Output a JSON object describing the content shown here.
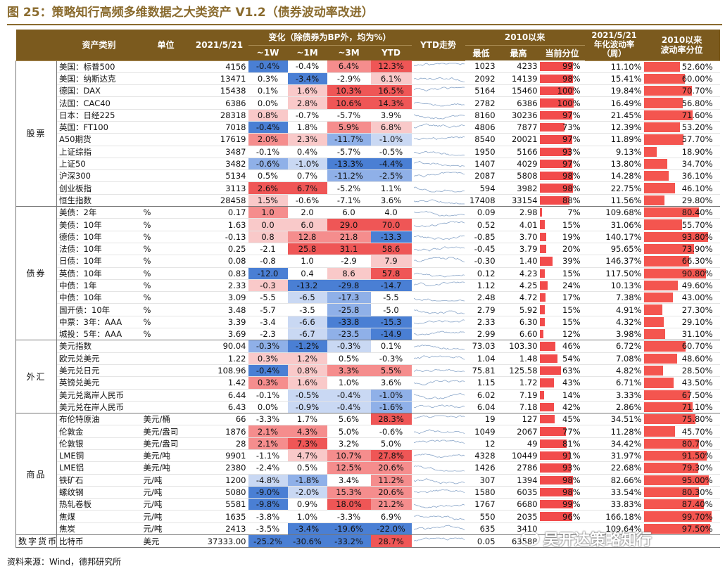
{
  "title": "图 25：策略知行高频多维数据之大类资产 V1.2（债券波动率改进）",
  "header": {
    "asset": "资产类别",
    "unit": "单位",
    "date": "2021/5/21",
    "change_group": "变化（除债券为BP外，均为%）",
    "w1": "~1W",
    "m1": "~1M",
    "m3": "~3M",
    "ytd": "YTD",
    "ytd_trend": "YTD走势",
    "since2010": "2010以来",
    "low": "最低",
    "high": "最高",
    "pctile": "当前分位",
    "vol": "2021/5/21\n年化波动率\n（周）",
    "vol_pctile": "2010以来\n波动率分位"
  },
  "colors": {
    "red": "#f24b4b",
    "blue": "#4a7fd4",
    "header": "#7b5a1e"
  },
  "groups": [
    {
      "name": "股票",
      "rows": [
        {
          "n": "美国：标普500",
          "u": "",
          "v": "4156",
          "w": "-0.4%",
          "m": "-0.4%",
          "t": "6.4%",
          "y": "12.3%",
          "lo": "1023",
          "hi": "4233",
          "p": "99%",
          "pv": 99,
          "vol": "11.10%",
          "vp": "52.60%",
          "vpv": 52.6,
          "wc": "b3",
          "mc": "",
          "tc": "r2",
          "yc": "r3"
        },
        {
          "n": "美国：纳斯达克",
          "u": "",
          "v": "13471",
          "w": "0.3%",
          "m": "-3.4%",
          "t": "-2.9%",
          "y": "6.1%",
          "lo": "2092",
          "hi": "14139",
          "p": "98%",
          "pv": 98,
          "vol": "15.41%",
          "vp": "60.00%",
          "vpv": 60,
          "wc": "",
          "mc": "b3",
          "tc": "",
          "yc": "r1"
        },
        {
          "n": "德国：DAX",
          "u": "",
          "v": "15438",
          "w": "0.1%",
          "m": "1.6%",
          "t": "10.3%",
          "y": "16.5%",
          "lo": "5164",
          "hi": "15460",
          "p": "100%",
          "pv": 100,
          "vol": "19.84%",
          "vp": "70.70%",
          "vpv": 70.7,
          "wc": "",
          "mc": "r1",
          "tc": "r3",
          "yc": "r3"
        },
        {
          "n": "法国：CAC40",
          "u": "",
          "v": "6386",
          "w": "0.0%",
          "m": "2.8%",
          "t": "10.6%",
          "y": "14.3%",
          "lo": "2782",
          "hi": "6386",
          "p": "100%",
          "pv": 100,
          "vol": "16.49%",
          "vp": "56.80%",
          "vpv": 56.8,
          "wc": "",
          "mc": "r1",
          "tc": "r3",
          "yc": "r3"
        },
        {
          "n": "日本：日经225",
          "u": "",
          "v": "28318",
          "w": "0.8%",
          "m": "-0.7%",
          "t": "-5.7%",
          "y": "3.9%",
          "lo": "8160",
          "hi": "30236",
          "p": "97%",
          "pv": 97,
          "vol": "21.45%",
          "vp": "71.60%",
          "vpv": 71.6,
          "wc": "r1",
          "mc": "",
          "tc": "",
          "yc": ""
        },
        {
          "n": "英国：FT100",
          "u": "",
          "v": "7018",
          "w": "-0.4%",
          "m": "1.8%",
          "t": "5.9%",
          "y": "6.8%",
          "lo": "4806",
          "hi": "7877",
          "p": "73%",
          "pv": 73,
          "vol": "12.39%",
          "vp": "53.20%",
          "vpv": 53.2,
          "wc": "b3",
          "mc": "",
          "tc": "r2",
          "yc": "r1"
        },
        {
          "n": "A50期货",
          "u": "",
          "v": "17619",
          "w": "2.0%",
          "m": "2.3%",
          "t": "-11.7%",
          "y": "-1.0%",
          "lo": "8540",
          "hi": "20021",
          "p": "97%",
          "pv": 97,
          "vol": "11.89%",
          "vp": "57.70%",
          "vpv": 57.7,
          "wc": "r2",
          "mc": "r1",
          "tc": "b2",
          "yc": "b1"
        },
        {
          "n": "上证综指",
          "u": "",
          "v": "3487",
          "w": "-0.1%",
          "m": "0.4%",
          "t": "-5.7%",
          "y": "-0.5%",
          "lo": "1950",
          "hi": "5166",
          "p": "93%",
          "pv": 93,
          "vol": "9.13%",
          "vp": "18.90%",
          "vpv": 18.9,
          "wc": "",
          "mc": "",
          "tc": "",
          "yc": ""
        },
        {
          "n": "上证50",
          "u": "",
          "v": "3482",
          "w": "-0.6%",
          "m": "-1.0%",
          "t": "-13.3%",
          "y": "-4.4%",
          "lo": "1407",
          "hi": "4029",
          "p": "97%",
          "pv": 97,
          "vol": "13.80%",
          "vp": "34.70%",
          "vpv": 34.7,
          "wc": "b2",
          "mc": "b1",
          "tc": "b3",
          "yc": "b3"
        },
        {
          "n": "沪深300",
          "u": "",
          "v": "5134",
          "w": "0.5%",
          "m": "0.7%",
          "t": "-11.2%",
          "y": "-2.5%",
          "lo": "2087",
          "hi": "5808",
          "p": "98%",
          "pv": 98,
          "vol": "14.28%",
          "vp": "36.10%",
          "vpv": 36.1,
          "wc": "",
          "mc": "",
          "tc": "b2",
          "yc": "b2"
        },
        {
          "n": "创业板指",
          "u": "",
          "v": "3113",
          "w": "2.6%",
          "m": "6.7%",
          "t": "-5.2%",
          "y": "1.1%",
          "lo": "594",
          "hi": "3982",
          "p": "98%",
          "pv": 98,
          "vol": "22.75%",
          "vp": "46.10%",
          "vpv": 46.1,
          "wc": "r3",
          "mc": "r3",
          "tc": "",
          "yc": ""
        },
        {
          "n": "恒生指数",
          "u": "",
          "v": "28458",
          "w": "1.5%",
          "m": "-0.6%",
          "t": "-7.1%",
          "y": "3.6%",
          "lo": "17408",
          "hi": "33154",
          "p": "88%",
          "pv": 88,
          "vol": "11.56%",
          "vp": "29.80%",
          "vpv": 29.8,
          "wc": "r1",
          "mc": "",
          "tc": "",
          "yc": ""
        }
      ]
    },
    {
      "name": "债券",
      "rows": [
        {
          "n": "美债：2年",
          "u": "%",
          "v": "0.17",
          "w": "1.0",
          "m": "2.0",
          "t": "6.0",
          "y": "4.0",
          "lo": "0.09",
          "hi": "2.98",
          "p": "7%",
          "pv": 7,
          "vol": "109.68%",
          "vp": "80.40%",
          "vpv": 80.4,
          "wc": "r2",
          "mc": "",
          "tc": "",
          "yc": ""
        },
        {
          "n": "美债：10年",
          "u": "%",
          "v": "1.63",
          "w": "0.0",
          "m": "6.0",
          "t": "29.0",
          "y": "70.0",
          "lo": "0.52",
          "hi": "4.01",
          "p": "15%",
          "pv": 15,
          "vol": "31.06%",
          "vp": "55.70%",
          "vpv": 55.7,
          "wc": "r1",
          "mc": "r1",
          "tc": "r3",
          "yc": "r3"
        },
        {
          "n": "德债：10年",
          "u": "%",
          "v": "-0.13",
          "w": "0.8",
          "m": "12.8",
          "t": "21.8",
          "y": "-13.3",
          "lo": "-0.85",
          "hi": "3.70",
          "p": "19%",
          "pv": 19,
          "vol": "140.17%",
          "vp": "93.80%",
          "vpv": 93.8,
          "wc": "r1",
          "mc": "r2",
          "tc": "r2",
          "yc": "b3"
        },
        {
          "n": "法债：10年",
          "u": "%",
          "v": "0.25",
          "w": "-2.1",
          "m": "25.8",
          "t": "31.1",
          "y": "58.6",
          "lo": "-0.45",
          "hi": "3.79",
          "p": "20%",
          "pv": 20,
          "vol": "95.65%",
          "vp": "73.90%",
          "vpv": 73.9,
          "wc": "",
          "mc": "r3",
          "tc": "r3",
          "yc": "r3"
        },
        {
          "n": "日债：10年",
          "u": "%",
          "v": "0.08",
          "w": "-0.8",
          "m": "1.0",
          "t": "-2.9",
          "y": "7.9",
          "lo": "-0.30",
          "hi": "1.40",
          "p": "39%",
          "pv": 39,
          "vol": "146.37%",
          "vp": "66.30%",
          "vpv": 66.3,
          "wc": "",
          "mc": "",
          "tc": "",
          "yc": "r1"
        },
        {
          "n": "英债：10年",
          "u": "%",
          "v": "0.83",
          "w": "-12.0",
          "m": "0.4",
          "t": "8.6",
          "y": "57.8",
          "lo": "0.12",
          "hi": "4.23",
          "p": "15%",
          "pv": 15,
          "vol": "117.50%",
          "vp": "90.80%",
          "vpv": 90.8,
          "wc": "b3",
          "mc": "",
          "tc": "r1",
          "yc": "r3"
        },
        {
          "n": "中债：1年",
          "u": "%",
          "v": "2.33",
          "w": "-0.3",
          "m": "-13.2",
          "t": "-29.8",
          "y": "-14.7",
          "lo": "1.12",
          "hi": "4.25",
          "p": "24%",
          "pv": 24,
          "vol": "10.13%",
          "vp": "49.60%",
          "vpv": 49.6,
          "wc": "r1",
          "mc": "b3",
          "tc": "b3",
          "yc": "b3"
        },
        {
          "n": "中债：10年",
          "u": "%",
          "v": "3.09",
          "w": "-5.5",
          "m": "-6.5",
          "t": "-17.3",
          "y": "-5.5",
          "lo": "2.48",
          "hi": "4.72",
          "p": "17%",
          "pv": 17,
          "vol": "7.38%",
          "vp": "43.00%",
          "vpv": 43,
          "wc": "",
          "mc": "b1",
          "tc": "b2",
          "yc": ""
        },
        {
          "n": "国开债：10年",
          "u": "%",
          "v": "3.48",
          "w": "-5.7",
          "m": "-3.5",
          "t": "-25.8",
          "y": "-5.0",
          "lo": "2.79",
          "hi": "5.92",
          "p": "15%",
          "pv": 15,
          "vol": "4.91%",
          "vp": "27.30%",
          "vpv": 27.3,
          "wc": "",
          "mc": "",
          "tc": "b2",
          "yc": ""
        },
        {
          "n": "中票：3年：AAA",
          "u": "%",
          "v": "3.39",
          "w": "-3.4",
          "m": "-6.6",
          "t": "-33.8",
          "y": "-15.3",
          "lo": "2.33",
          "hi": "6.30",
          "p": "15%",
          "pv": 15,
          "vol": "4.32%",
          "vp": "29.10%",
          "vpv": 29.1,
          "wc": "",
          "mc": "b1",
          "tc": "b3",
          "yc": "b3"
        },
        {
          "n": "城投：5年：AAA",
          "u": "%",
          "v": "3.69",
          "w": "-2.3",
          "m": "-6.7",
          "t": "-23.5",
          "y": "-14.9",
          "lo": "2.99",
          "hi": "6.60",
          "p": "12%",
          "pv": 12,
          "vol": "3.98%",
          "vp": "31.10%",
          "vpv": 31.1,
          "wc": "",
          "mc": "b1",
          "tc": "b2",
          "yc": "b3"
        }
      ]
    },
    {
      "name": "外汇",
      "rows": [
        {
          "n": "美元指数",
          "u": "",
          "v": "90.04",
          "w": "-0.3%",
          "m": "-1.2%",
          "t": "-0.3%",
          "y": "0.1%",
          "lo": "73.03",
          "hi": "103.30",
          "p": "46%",
          "pv": 46,
          "vol": "6.72%",
          "vp": "60.70%",
          "vpv": 60.7,
          "wc": "b2",
          "mc": "b3",
          "tc": "b1",
          "yc": ""
        },
        {
          "n": "欧元兑美元",
          "u": "",
          "v": "1.22",
          "w": "0.3%",
          "m": "1.2%",
          "t": "0.5%",
          "y": "-0.3%",
          "lo": "1.04",
          "hi": "1.48",
          "p": "54%",
          "pv": 54,
          "vol": "7.08%",
          "vp": "48.60%",
          "vpv": 48.6,
          "wc": "r1",
          "mc": "r1",
          "tc": "",
          "yc": ""
        },
        {
          "n": "美元兑日元",
          "u": "",
          "v": "108.96",
          "w": "-0.4%",
          "m": "0.8%",
          "t": "3.3%",
          "y": "5.5%",
          "lo": "75.81",
          "hi": "125.58",
          "p": "63%",
          "pv": 63,
          "vol": "4.82%",
          "vp": "28.50%",
          "vpv": 28.5,
          "wc": "b3",
          "mc": "r1",
          "tc": "r2",
          "yc": "r2"
        },
        {
          "n": "英镑兑美元",
          "u": "",
          "v": "1.42",
          "w": "0.3%",
          "m": "1.6%",
          "t": "1.0%",
          "y": "3.6%",
          "lo": "1.15",
          "hi": "1.72",
          "p": "43%",
          "pv": 43,
          "vol": "6.71%",
          "vp": "43.50%",
          "vpv": 43.5,
          "wc": "r2",
          "mc": "r1",
          "tc": "",
          "yc": ""
        },
        {
          "n": "美元兑离岸人民币",
          "u": "",
          "v": "6.44",
          "w": "-0.1%",
          "m": "-0.5%",
          "t": "-0.4%",
          "y": "-1.0%",
          "lo": "6.02",
          "hi": "7.19",
          "p": "14%",
          "pv": 14,
          "vol": "3.33%",
          "vp": "67.50%",
          "vpv": 67.5,
          "wc": "",
          "mc": "b1",
          "tc": "b1",
          "yc": "b2"
        },
        {
          "n": "美元兑在岸人民币",
          "u": "",
          "v": "6.43",
          "w": "0.0%",
          "m": "-0.9%",
          "t": "-0.4%",
          "y": "-1.6%",
          "lo": "6.04",
          "hi": "7.18",
          "p": "42%",
          "pv": 42,
          "vol": "2.86%",
          "vp": "71.10%",
          "vpv": 71.1,
          "wc": "",
          "mc": "b1",
          "tc": "b1",
          "yc": "b2"
        }
      ]
    },
    {
      "name": "商品",
      "rows": [
        {
          "n": "布伦特原油",
          "u": "美元/桶",
          "v": "66",
          "w": "-3.3%",
          "m": "1.7%",
          "t": "5.6%",
          "y": "28.3%",
          "lo": "19",
          "hi": "127",
          "p": "45%",
          "pv": 45,
          "vol": "34.51%",
          "vp": "75.80%",
          "vpv": 75.8,
          "wc": "",
          "mc": "",
          "tc": "",
          "yc": "r3"
        },
        {
          "n": "伦敦金",
          "u": "美元/盎司",
          "v": "1876",
          "w": "2.1%",
          "m": "4.3%",
          "t": "5.0%",
          "y": "-0.6%",
          "lo": "1049",
          "hi": "2067",
          "p": "77%",
          "pv": 77,
          "vol": "11.28%",
          "vp": "45.70%",
          "vpv": 45.7,
          "wc": "r2",
          "mc": "r2",
          "tc": "",
          "yc": ""
        },
        {
          "n": "伦敦银",
          "u": "美元/盎司",
          "v": "28",
          "w": "2.1%",
          "m": "7.3%",
          "t": "3.2%",
          "y": "5.0%",
          "lo": "12",
          "hi": "49",
          "p": "81%",
          "pv": 81,
          "vol": "34.42%",
          "vp": "80.70%",
          "vpv": 80.7,
          "wc": "r2",
          "mc": "r3",
          "tc": "",
          "yc": ""
        },
        {
          "n": "LME铜",
          "u": "美元/吨",
          "v": "9901",
          "w": "-1.1%",
          "m": "4.7%",
          "t": "10.7%",
          "y": "27.8%",
          "lo": "4328",
          "hi": "10449",
          "p": "91%",
          "pv": 91,
          "vol": "31.97%",
          "vp": "91.50%",
          "vpv": 91.5,
          "wc": "",
          "mc": "r1",
          "tc": "r2",
          "yc": "r3"
        },
        {
          "n": "LME铝",
          "u": "美元/吨",
          "v": "2380",
          "w": "-2.4%",
          "m": "0.5%",
          "t": "12.5%",
          "y": "20.6%",
          "lo": "1426",
          "hi": "2786",
          "p": "93%",
          "pv": 93,
          "vol": "22.68%",
          "vp": "79.30%",
          "vpv": 79.3,
          "wc": "",
          "mc": "",
          "tc": "r2",
          "yc": "r2"
        },
        {
          "n": "铁矿石",
          "u": "元/吨",
          "v": "1200",
          "w": "-4.8%",
          "m": "-1.8%",
          "t": "3.4%",
          "y": "11.2%",
          "lo": "307",
          "hi": "1394",
          "p": "98%",
          "pv": 98,
          "vol": "82.66%",
          "vp": "95.00%",
          "vpv": 95,
          "wc": "b1",
          "mc": "b2",
          "tc": "",
          "yc": "r2"
        },
        {
          "n": "螺纹钢",
          "u": "元/吨",
          "v": "5080",
          "w": "-9.0%",
          "m": "-2.0%",
          "t": "15.3%",
          "y": "20.6%",
          "lo": "1580",
          "hi": "6035",
          "p": "98%",
          "pv": 98,
          "vol": "33.54%",
          "vp": "80.30%",
          "vpv": 80.3,
          "wc": "b3",
          "mc": "b1",
          "tc": "r2",
          "yc": "r2"
        },
        {
          "n": "热轧卷板",
          "u": "元/吨",
          "v": "5581",
          "w": "-9.8%",
          "m": "0.9%",
          "t": "18.0%",
          "y": "21.2%",
          "lo": "1767",
          "hi": "6680",
          "p": "99%",
          "pv": 99,
          "vol": "33.83%",
          "vp": "87.40%",
          "vpv": 87.4,
          "wc": "b3",
          "mc": "",
          "tc": "r3",
          "yc": "r2"
        },
        {
          "n": "焦煤",
          "u": "元/吨",
          "v": "1635",
          "w": "-3.8%",
          "m": "1.0%",
          "t": "-3.3%",
          "y": "6.9%",
          "lo": "550",
          "hi": "2035",
          "p": "96%",
          "pv": 96,
          "vol": "166.18%",
          "vp": "99.70%",
          "vpv": 99.7,
          "wc": "",
          "mc": "",
          "tc": "",
          "yc": ""
        },
        {
          "n": "焦炭",
          "u": "元/吨",
          "v": "2413",
          "w": "-3.5%",
          "m": "-3.4%",
          "t": "-19.6%",
          "y": "-22.0%",
          "lo": "635",
          "hi": "3410",
          "p": "",
          "pv": 0,
          "vol": "109.64%",
          "vp": "97.50%",
          "vpv": 97.5,
          "wc": "",
          "mc": "b3",
          "tc": "b3",
          "yc": "b3"
        }
      ]
    },
    {
      "name": "数字货币",
      "rows": [
        {
          "n": "比特币",
          "u": "美元",
          "v": "37333.00",
          "w": "-25.2%",
          "m": "-30.6%",
          "t": "-33.2%",
          "y": "28.7%",
          "lo": "0.05",
          "hi": "63588",
          "p": "",
          "pv": 0,
          "vol": "",
          "vp": "",
          "vpv": 0,
          "wc": "b3",
          "mc": "b3",
          "tc": "b3",
          "yc": "r3"
        }
      ]
    }
  ],
  "footer": "资料来源：Wind，德邦研究所",
  "watermark": "吴开达策略知行"
}
